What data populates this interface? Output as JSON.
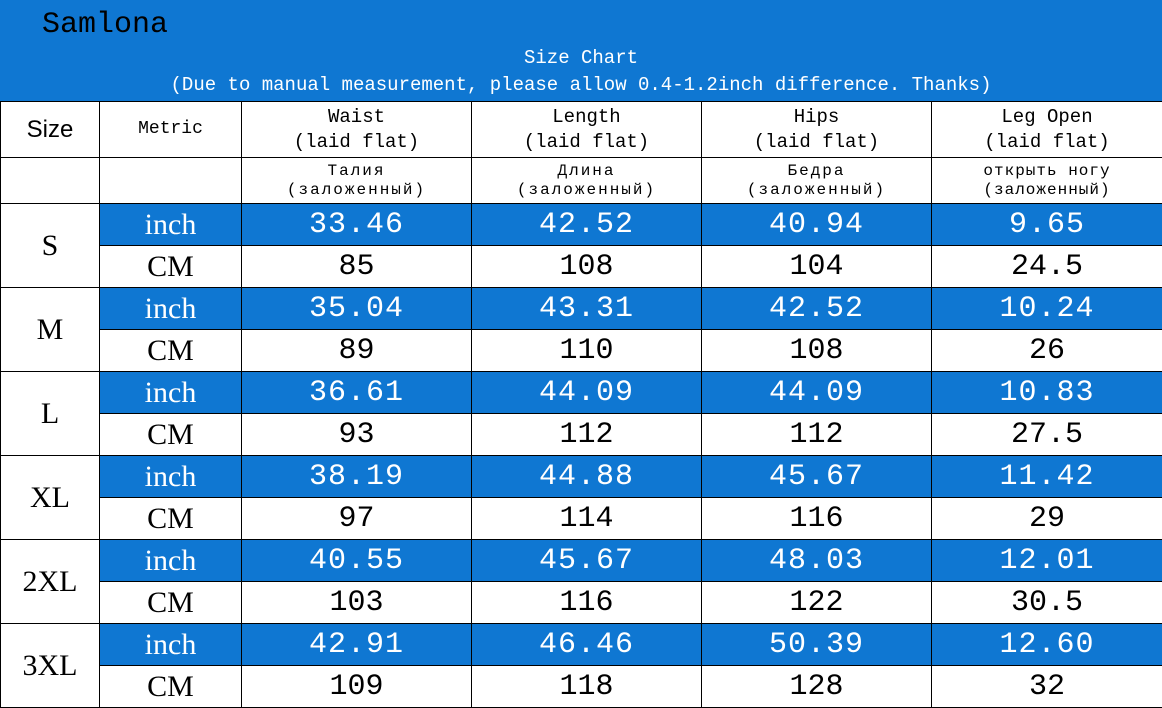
{
  "header": {
    "brand": "Samlona",
    "title": "Size Chart",
    "note": "(Due to manual measurement, please allow 0.4-1.2inch difference. Thanks)"
  },
  "columns": {
    "size": "Size",
    "metric": "Metric",
    "waist": {
      "en": "Waist",
      "sub": "(laid flat)",
      "ru": "Талия",
      "ru_sub": "(заложенный)"
    },
    "length": {
      "en": "Length",
      "sub": "(laid flat)",
      "ru": "Длина",
      "ru_sub": "(заложенный)"
    },
    "hips": {
      "en": "Hips",
      "sub": "(laid flat)",
      "ru": "Бедра",
      "ru_sub": "(заложенный)"
    },
    "leg": {
      "en": "Leg Open",
      "sub": "(laid flat)",
      "ru": "открыть ногу",
      "ru_sub": "(заложенный)"
    }
  },
  "rows": [
    {
      "size": "S",
      "inch": {
        "unit": "inch",
        "waist": "33.46",
        "length": "42.52",
        "hips": "40.94",
        "leg": "9.65"
      },
      "cm": {
        "unit": "CM",
        "waist": "85",
        "length": "108",
        "hips": "104",
        "leg": "24.5"
      }
    },
    {
      "size": "M",
      "inch": {
        "unit": "inch",
        "waist": "35.04",
        "length": "43.31",
        "hips": "42.52",
        "leg": "10.24"
      },
      "cm": {
        "unit": "CM",
        "waist": "89",
        "length": "110",
        "hips": "108",
        "leg": "26"
      }
    },
    {
      "size": "L",
      "inch": {
        "unit": "inch",
        "waist": "36.61",
        "length": "44.09",
        "hips": "44.09",
        "leg": "10.83"
      },
      "cm": {
        "unit": "CM",
        "waist": "93",
        "length": "112",
        "hips": "112",
        "leg": "27.5"
      }
    },
    {
      "size": "XL",
      "inch": {
        "unit": "inch",
        "waist": "38.19",
        "length": "44.88",
        "hips": "45.67",
        "leg": "11.42"
      },
      "cm": {
        "unit": "CM",
        "waist": "97",
        "length": "114",
        "hips": "116",
        "leg": "29"
      }
    },
    {
      "size": "2XL",
      "inch": {
        "unit": "inch",
        "waist": "40.55",
        "length": "45.67",
        "hips": "48.03",
        "leg": "12.01"
      },
      "cm": {
        "unit": "CM",
        "waist": "103",
        "length": "116",
        "hips": "122",
        "leg": "30.5"
      }
    },
    {
      "size": "3XL",
      "inch": {
        "unit": "inch",
        "waist": "42.91",
        "length": "46.46",
        "hips": "50.39",
        "leg": "12.60"
      },
      "cm": {
        "unit": "CM",
        "waist": "109",
        "length": "118",
        "hips": "128",
        "leg": "32"
      }
    }
  ],
  "colors": {
    "accent": "#0f77d2",
    "text_on_accent": "#ffffff"
  }
}
